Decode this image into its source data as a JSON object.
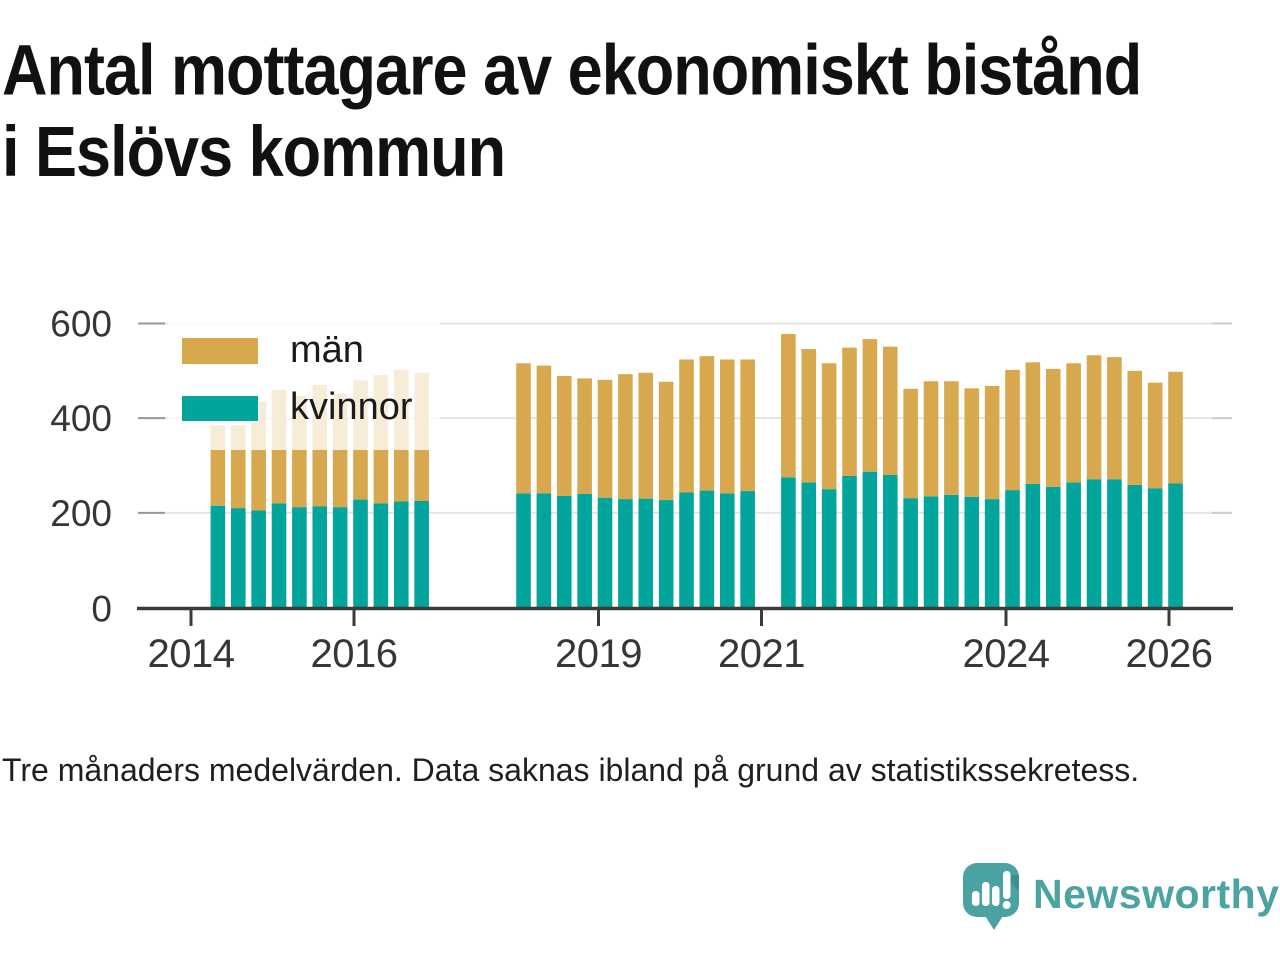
{
  "title": {
    "line1": "Antal mottagare av ekonomiskt bistånd",
    "line2": "i Eslövs kommun"
  },
  "legend": [
    {
      "label": "män",
      "color": "#d8a84f"
    },
    {
      "label": "kvinnor",
      "color": "#01a59b"
    }
  ],
  "footnote": "Tre månaders medelvärden. Data saknas ibland på grund av statistikssekretess.",
  "branding": {
    "name": "Newsworthy",
    "color": "#4ba3a2"
  },
  "chart_data": {
    "type": "bar",
    "stacked": true,
    "title": "Antal mottagare av ekonomiskt bistånd i Eslövs kommun",
    "unit": "antal personer",
    "x_tick_labels": [
      "2014",
      "2016",
      "2019",
      "2021",
      "2024",
      "2026"
    ],
    "x_tick_years": [
      2014,
      2016,
      2019,
      2021,
      2024,
      2026
    ],
    "y_ticks": [
      0,
      200,
      400,
      600
    ],
    "ylim": [
      0,
      620
    ],
    "grid": "horizontal",
    "legend_position": "top-left overlay",
    "series_names": [
      "kvinnor",
      "män"
    ],
    "series_colors": {
      "kvinnor": "#01a59b",
      "män": "#d8a84f"
    },
    "missing_periods": [
      "2017-Q1",
      "2017-Q2",
      "2017-Q3",
      "2017-Q4",
      "2021-Q1"
    ],
    "bars": [
      {
        "period": "2014-Q2",
        "kvinnor": 215,
        "man": 170
      },
      {
        "period": "2014-Q3",
        "kvinnor": 210,
        "man": 175
      },
      {
        "period": "2014-Q4",
        "kvinnor": 205,
        "man": 230
      },
      {
        "period": "2015-Q1",
        "kvinnor": 220,
        "man": 240
      },
      {
        "period": "2015-Q2",
        "kvinnor": 212,
        "man": 235
      },
      {
        "period": "2015-Q3",
        "kvinnor": 214,
        "man": 256
      },
      {
        "period": "2015-Q4",
        "kvinnor": 212,
        "man": 240
      },
      {
        "period": "2016-Q1",
        "kvinnor": 228,
        "man": 252
      },
      {
        "period": "2016-Q2",
        "kvinnor": 220,
        "man": 271
      },
      {
        "period": "2016-Q3",
        "kvinnor": 224,
        "man": 278
      },
      {
        "period": "2016-Q4",
        "kvinnor": 225,
        "man": 271
      },
      {
        "period": "2018-Q1",
        "kvinnor": 241,
        "man": 275
      },
      {
        "period": "2018-Q2",
        "kvinnor": 241,
        "man": 270
      },
      {
        "period": "2018-Q3",
        "kvinnor": 236,
        "man": 253
      },
      {
        "period": "2018-Q4",
        "kvinnor": 240,
        "man": 244
      },
      {
        "period": "2019-Q1",
        "kvinnor": 232,
        "man": 249
      },
      {
        "period": "2019-Q2",
        "kvinnor": 229,
        "man": 264
      },
      {
        "period": "2019-Q3",
        "kvinnor": 230,
        "man": 266
      },
      {
        "period": "2019-Q4",
        "kvinnor": 227,
        "man": 250
      },
      {
        "period": "2020-Q1",
        "kvinnor": 243,
        "man": 281
      },
      {
        "period": "2020-Q2",
        "kvinnor": 247,
        "man": 284
      },
      {
        "period": "2020-Q3",
        "kvinnor": 241,
        "man": 283
      },
      {
        "period": "2020-Q4",
        "kvinnor": 246,
        "man": 278
      },
      {
        "period": "2021-Q2",
        "kvinnor": 275,
        "man": 303
      },
      {
        "period": "2021-Q3",
        "kvinnor": 264,
        "man": 282
      },
      {
        "period": "2021-Q4",
        "kvinnor": 250,
        "man": 266
      },
      {
        "period": "2022-Q1",
        "kvinnor": 278,
        "man": 271
      },
      {
        "period": "2022-Q2",
        "kvinnor": 287,
        "man": 280
      },
      {
        "period": "2022-Q3",
        "kvinnor": 280,
        "man": 271
      },
      {
        "period": "2022-Q4",
        "kvinnor": 231,
        "man": 231
      },
      {
        "period": "2023-Q1",
        "kvinnor": 235,
        "man": 243
      },
      {
        "period": "2023-Q2",
        "kvinnor": 238,
        "man": 240
      },
      {
        "period": "2023-Q3",
        "kvinnor": 234,
        "man": 229
      },
      {
        "period": "2023-Q4",
        "kvinnor": 229,
        "man": 239
      },
      {
        "period": "2024-Q1",
        "kvinnor": 248,
        "man": 254
      },
      {
        "period": "2024-Q2",
        "kvinnor": 261,
        "man": 257
      },
      {
        "period": "2024-Q3",
        "kvinnor": 255,
        "man": 249
      },
      {
        "period": "2024-Q4",
        "kvinnor": 264,
        "man": 252
      },
      {
        "period": "2025-Q1",
        "kvinnor": 271,
        "man": 262
      },
      {
        "period": "2025-Q2",
        "kvinnor": 271,
        "man": 258
      },
      {
        "period": "2025-Q3",
        "kvinnor": 259,
        "man": 241
      },
      {
        "period": "2025-Q4",
        "kvinnor": 252,
        "man": 223
      },
      {
        "period": "2026-Q1",
        "kvinnor": 262,
        "man": 236
      }
    ]
  }
}
